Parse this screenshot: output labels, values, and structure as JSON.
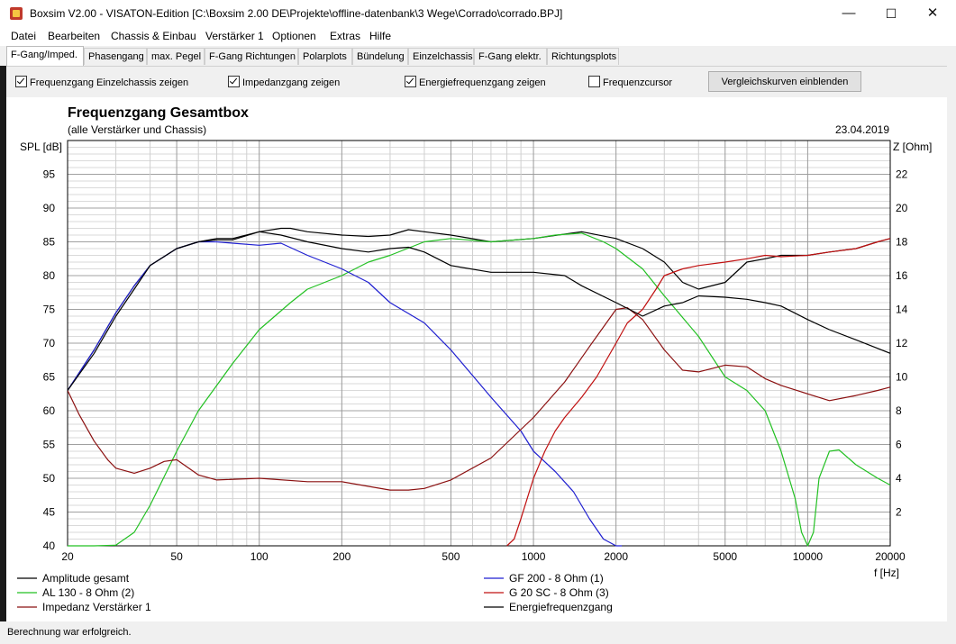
{
  "window": {
    "title": "Boxsim V2.00 - VISATON-Edition [C:\\Boxsim 2.00 DE\\Projekte\\offline-datenbank\\3 Wege\\Corrado\\corrado.BPJ]",
    "minimize_glyph": "—",
    "maximize_glyph": "☐",
    "close_glyph": "✕"
  },
  "menu": [
    "Datei",
    "Bearbeiten",
    "Chassis & Einbau",
    "Verstärker 1",
    "Optionen",
    "Extras",
    "Hilfe"
  ],
  "tabs": [
    "F-Gang/Imped.",
    "Phasengang",
    "max. Pegel",
    "F-Gang Richtungen",
    "Polarplots",
    "Bündelung",
    "Einzelchassis",
    "F-Gang elektr.",
    "Richtungsplots"
  ],
  "active_tab": 0,
  "options": {
    "einzelchassis": {
      "label": "Frequenzgang Einzelchassis zeigen",
      "checked": true
    },
    "impedanz": {
      "label": "Impedanzgang zeigen",
      "checked": true
    },
    "energie": {
      "label": "Energiefrequenzgang zeigen",
      "checked": true
    },
    "cursor": {
      "label": "Frequenzcursor",
      "checked": false
    },
    "compare_button": "Vergleichskurven einblenden"
  },
  "status": "Berechnung war erfolgreich.",
  "colors": {
    "black": "#000000",
    "blue": "#1f1fd0",
    "green": "#22c022",
    "red": "#c01010",
    "darkred": "#8b1010",
    "grid": "#c8c8c8"
  },
  "chart_data": {
    "type": "line",
    "title": "Frequenzgang Gesamtbox",
    "subtitle": "(alle Verstärker und Chassis)",
    "date": "23.04.2019",
    "ylabel": "SPL [dB]",
    "y2label": "Z [Ohm]",
    "xlabel": "f [Hz]",
    "xscale": "log",
    "xlim": [
      20,
      20000
    ],
    "ylim": [
      40,
      100
    ],
    "y2lim": [
      0,
      24
    ],
    "x_ticks": [
      "20",
      "50",
      "100",
      "200",
      "500",
      "1000",
      "2000",
      "5000",
      "10000",
      "20000"
    ],
    "y_ticks": [
      "40",
      "45",
      "50",
      "55",
      "60",
      "65",
      "70",
      "75",
      "80",
      "85",
      "90",
      "95"
    ],
    "y2_ticks": [
      "2",
      "4",
      "6",
      "8",
      "10",
      "12",
      "14",
      "16",
      "18",
      "20",
      "22"
    ],
    "grid": true,
    "series": [
      {
        "name": "Amplitude gesamt",
        "color": "#000000",
        "axis": "left",
        "x": [
          20,
          25,
          30,
          35,
          40,
          50,
          60,
          70,
          80,
          100,
          120,
          130,
          150,
          200,
          250,
          300,
          350,
          400,
          500,
          700,
          1000,
          1500,
          2000,
          2500,
          3000,
          3500,
          4000,
          5000,
          6000,
          7000,
          8000,
          10000,
          12000,
          15000,
          18000,
          20000
        ],
        "y": [
          63,
          69,
          74.5,
          78.5,
          81.5,
          84,
          85,
          85.5,
          85.5,
          86.5,
          87,
          87,
          86.5,
          86,
          85.8,
          86,
          86.8,
          86.5,
          86,
          85,
          85.5,
          86.5,
          85.5,
          84,
          82,
          79,
          78,
          79,
          82,
          82.5,
          83,
          83,
          83.5,
          84,
          85,
          85.5
        ]
      },
      {
        "name": "AL 130 - 8 Ohm (2)",
        "color": "#22c022",
        "axis": "left",
        "x": [
          20,
          25,
          30,
          35,
          40,
          50,
          60,
          80,
          100,
          130,
          150,
          200,
          250,
          300,
          400,
          500,
          700,
          1000,
          1200,
          1500,
          1800,
          2000,
          2500,
          3000,
          4000,
          5000,
          6000,
          7000,
          8000,
          9000,
          9500,
          10000,
          10500,
          11000,
          12000,
          13000,
          15000,
          18000,
          20000
        ],
        "y": [
          40,
          40,
          40.1,
          42,
          46,
          54,
          60,
          67,
          72,
          76,
          78,
          80,
          82,
          83,
          85,
          85.5,
          85,
          85.5,
          86,
          86.3,
          85,
          84,
          81,
          77,
          71,
          65,
          63,
          60,
          54,
          47,
          42,
          40,
          42,
          50,
          54,
          54.2,
          52,
          50,
          49
        ]
      },
      {
        "name": "GF 200 - 8 Ohm (1)",
        "color": "#1f1fd0",
        "axis": "left",
        "x": [
          20,
          25,
          30,
          35,
          40,
          50,
          60,
          70,
          80,
          100,
          120,
          150,
          200,
          250,
          300,
          400,
          500,
          700,
          900,
          1000,
          1200,
          1400,
          1600,
          1800,
          2000,
          2100
        ],
        "y": [
          63,
          69,
          74.5,
          78.5,
          81.5,
          84,
          85,
          85,
          84.8,
          84.5,
          84.8,
          83,
          81,
          79,
          76,
          73,
          69,
          62,
          57,
          54,
          51,
          48,
          44,
          41,
          40,
          40
        ]
      },
      {
        "name": "G 20 SC - 8 Ohm (3)",
        "color": "#c01010",
        "axis": "left",
        "x": [
          800,
          850,
          900,
          1000,
          1100,
          1200,
          1300,
          1500,
          1700,
          2000,
          2200,
          2500,
          2800,
          3000,
          3500,
          4000,
          5000,
          6000,
          7000,
          8000,
          10000,
          12000,
          15000,
          18000,
          20000
        ],
        "y": [
          40,
          41,
          44,
          50,
          54,
          57,
          59,
          62,
          65,
          70,
          73,
          75,
          78,
          80,
          81,
          81.5,
          82,
          82.5,
          83,
          82.8,
          83,
          83.5,
          84,
          85,
          85.5
        ]
      },
      {
        "name": "Impedanz Verstärker 1",
        "color": "#8b1010",
        "axis": "right",
        "x": [
          20,
          22,
          25,
          28,
          30,
          35,
          40,
          45,
          50,
          60,
          70,
          100,
          150,
          200,
          300,
          350,
          400,
          500,
          700,
          1000,
          1300,
          1600,
          2000,
          2200,
          2500,
          3000,
          3500,
          4000,
          5000,
          6000,
          7000,
          8000,
          10000,
          12000,
          15000,
          18000,
          20000
        ],
        "y": [
          9.2,
          7.8,
          6.2,
          5.1,
          4.6,
          4.3,
          4.6,
          5.0,
          5.1,
          4.2,
          3.9,
          4.0,
          3.8,
          3.8,
          3.3,
          3.3,
          3.4,
          3.9,
          5.2,
          7.6,
          9.7,
          11.8,
          14.0,
          14.1,
          13.4,
          11.6,
          10.4,
          10.3,
          10.7,
          10.6,
          9.9,
          9.5,
          9.0,
          8.6,
          8.9,
          9.2,
          9.4
        ]
      },
      {
        "name": "Energiefrequenzgang",
        "color": "#000000",
        "axis": "left",
        "x": [
          20,
          25,
          30,
          35,
          40,
          50,
          60,
          70,
          80,
          100,
          120,
          150,
          200,
          250,
          300,
          350,
          400,
          500,
          700,
          1000,
          1300,
          1500,
          2000,
          2500,
          3000,
          3500,
          4000,
          5000,
          6000,
          7000,
          8000,
          10000,
          12000,
          15000,
          20000
        ],
        "y": [
          63,
          68.5,
          74,
          78,
          81.5,
          84,
          85,
          85.3,
          85.3,
          86.5,
          86,
          85,
          84,
          83.5,
          84,
          84.2,
          83.5,
          81.5,
          80.5,
          80.5,
          80,
          78.5,
          76,
          74,
          75.5,
          76,
          77,
          76.8,
          76.5,
          76,
          75.5,
          73.5,
          72,
          70.5,
          68.5
        ]
      }
    ],
    "legend": [
      {
        "label": "Amplitude gesamt",
        "color": "#000000"
      },
      {
        "label": "GF 200 - 8 Ohm (1)",
        "color": "#1f1fd0"
      },
      {
        "label": "AL 130 - 8 Ohm (2)",
        "color": "#22c022"
      },
      {
        "label": "G 20 SC - 8 Ohm (3)",
        "color": "#c01010"
      },
      {
        "label": "Impedanz Verstärker 1",
        "color": "#8b1010"
      },
      {
        "label": "Energiefrequenzgang",
        "color": "#000000"
      }
    ]
  }
}
